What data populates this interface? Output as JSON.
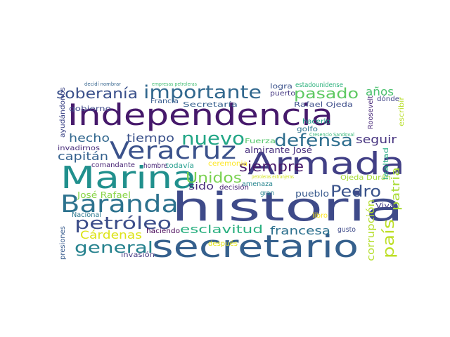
{
  "word_cloud": {
    "words": [
      {
        "text": "Independencia",
        "color": "#46196b"
      },
      {
        "text": "historia",
        "color": "#3e4a89"
      },
      {
        "text": "secretario",
        "color": "#35608d"
      },
      {
        "text": "Armada",
        "color": "#424086"
      },
      {
        "text": "Marina",
        "color": "#21908d"
      },
      {
        "text": "Veracruz",
        "color": "#3b528b"
      },
      {
        "text": "Baranda",
        "color": "#2c728e"
      },
      {
        "text": "importante",
        "color": "#31688e"
      },
      {
        "text": "pasado",
        "color": "#5ec962"
      },
      {
        "text": "soberanía",
        "color": "#3b518b"
      },
      {
        "text": "nuevo",
        "color": "#21a685"
      },
      {
        "text": "defensa",
        "color": "#2e6e8e"
      },
      {
        "text": "petróleo",
        "color": "#3d4e8a"
      },
      {
        "text": "general",
        "color": "#26828e"
      },
      {
        "text": "siempre",
        "color": "#48186a"
      },
      {
        "text": "Pedro",
        "color": "#3a538b"
      },
      {
        "text": "país",
        "color": "#bddf26"
      },
      {
        "text": "Unidos",
        "color": "#7ad151"
      },
      {
        "text": "esclavitud",
        "color": "#29af7f"
      },
      {
        "text": "francesa",
        "color": "#2d708e"
      },
      {
        "text": "años",
        "color": "#4ac16d"
      },
      {
        "text": "hecho",
        "color": "#31678e"
      },
      {
        "text": "tiempo",
        "color": "#3b528b"
      },
      {
        "text": "seguir",
        "color": "#46337f"
      },
      {
        "text": "capitán",
        "color": "#34618d"
      },
      {
        "text": "Cárdenas",
        "color": "#dde318"
      },
      {
        "text": "patria",
        "color": "#a8db34"
      },
      {
        "text": "corrupción",
        "color": "#b5de2b"
      },
      {
        "text": "sido",
        "color": "#472d7b"
      },
      {
        "text": "pueblo",
        "color": "#38598c"
      },
      {
        "text": "José Rafael",
        "color": "#89d548"
      },
      {
        "text": "almirante José",
        "color": "#472f7d"
      },
      {
        "text": "Fuerza",
        "color": "#52c569"
      },
      {
        "text": "Viva",
        "color": "#433e85"
      },
      {
        "text": "Secretaría",
        "color": "#355f8d"
      },
      {
        "text": "Rafael Ojeda",
        "color": "#3d4d8a"
      },
      {
        "text": "gobierno",
        "color": "#3f4889"
      },
      {
        "text": "Ojeda Durán",
        "color": "#a5db36"
      },
      {
        "text": "logra",
        "color": "#3b528b"
      },
      {
        "text": "estadounidense",
        "color": "#2db27d"
      },
      {
        "text": "puerto",
        "color": "#453882"
      },
      {
        "text": "Francia",
        "color": "#375b8d"
      },
      {
        "text": "invadirnos",
        "color": "#472c7a"
      },
      {
        "text": "comandante",
        "color": "#482475"
      },
      {
        "text": "hombre",
        "color": "#482677"
      },
      {
        "text": "todavía",
        "color": "#1e9b8a"
      },
      {
        "text": "ceremonia",
        "color": "#fde725"
      },
      {
        "text": "amenaza",
        "color": "#25848e"
      },
      {
        "text": "decisión",
        "color": "#482374"
      },
      {
        "text": "gran",
        "color": "#26828e"
      },
      {
        "text": "libro",
        "color": "#fde725"
      },
      {
        "text": "gusto",
        "color": "#3e4a89"
      },
      {
        "text": "haciendo",
        "color": "#440154"
      },
      {
        "text": "invasión",
        "color": "#453882"
      },
      {
        "text": "Nacional",
        "color": "#2a788e"
      },
      {
        "text": "presiones",
        "color": "#375b8d"
      },
      {
        "text": "después",
        "color": "#e5e419"
      },
      {
        "text": "hacerlo",
        "color": "#1f9e89"
      },
      {
        "text": "golfo",
        "color": "#2c728e"
      },
      {
        "text": "dónde",
        "color": "#414487"
      },
      {
        "text": "Roosevelt",
        "color": "#482878"
      },
      {
        "text": "escribir",
        "color": "#b8de29"
      },
      {
        "text": "lealtad",
        "color": "#25ab82"
      },
      {
        "text": "ayudándonos",
        "color": "#3f4788"
      },
      {
        "text": "Cresencio Sandoval",
        "color": "#35b779"
      },
      {
        "text": "petroleras extranjeras",
        "color": "#d2e21b"
      },
      {
        "text": "decidí nombrar",
        "color": "#33638d"
      },
      {
        "text": "empresas petroleras",
        "color": "#40bd72"
      }
    ]
  }
}
